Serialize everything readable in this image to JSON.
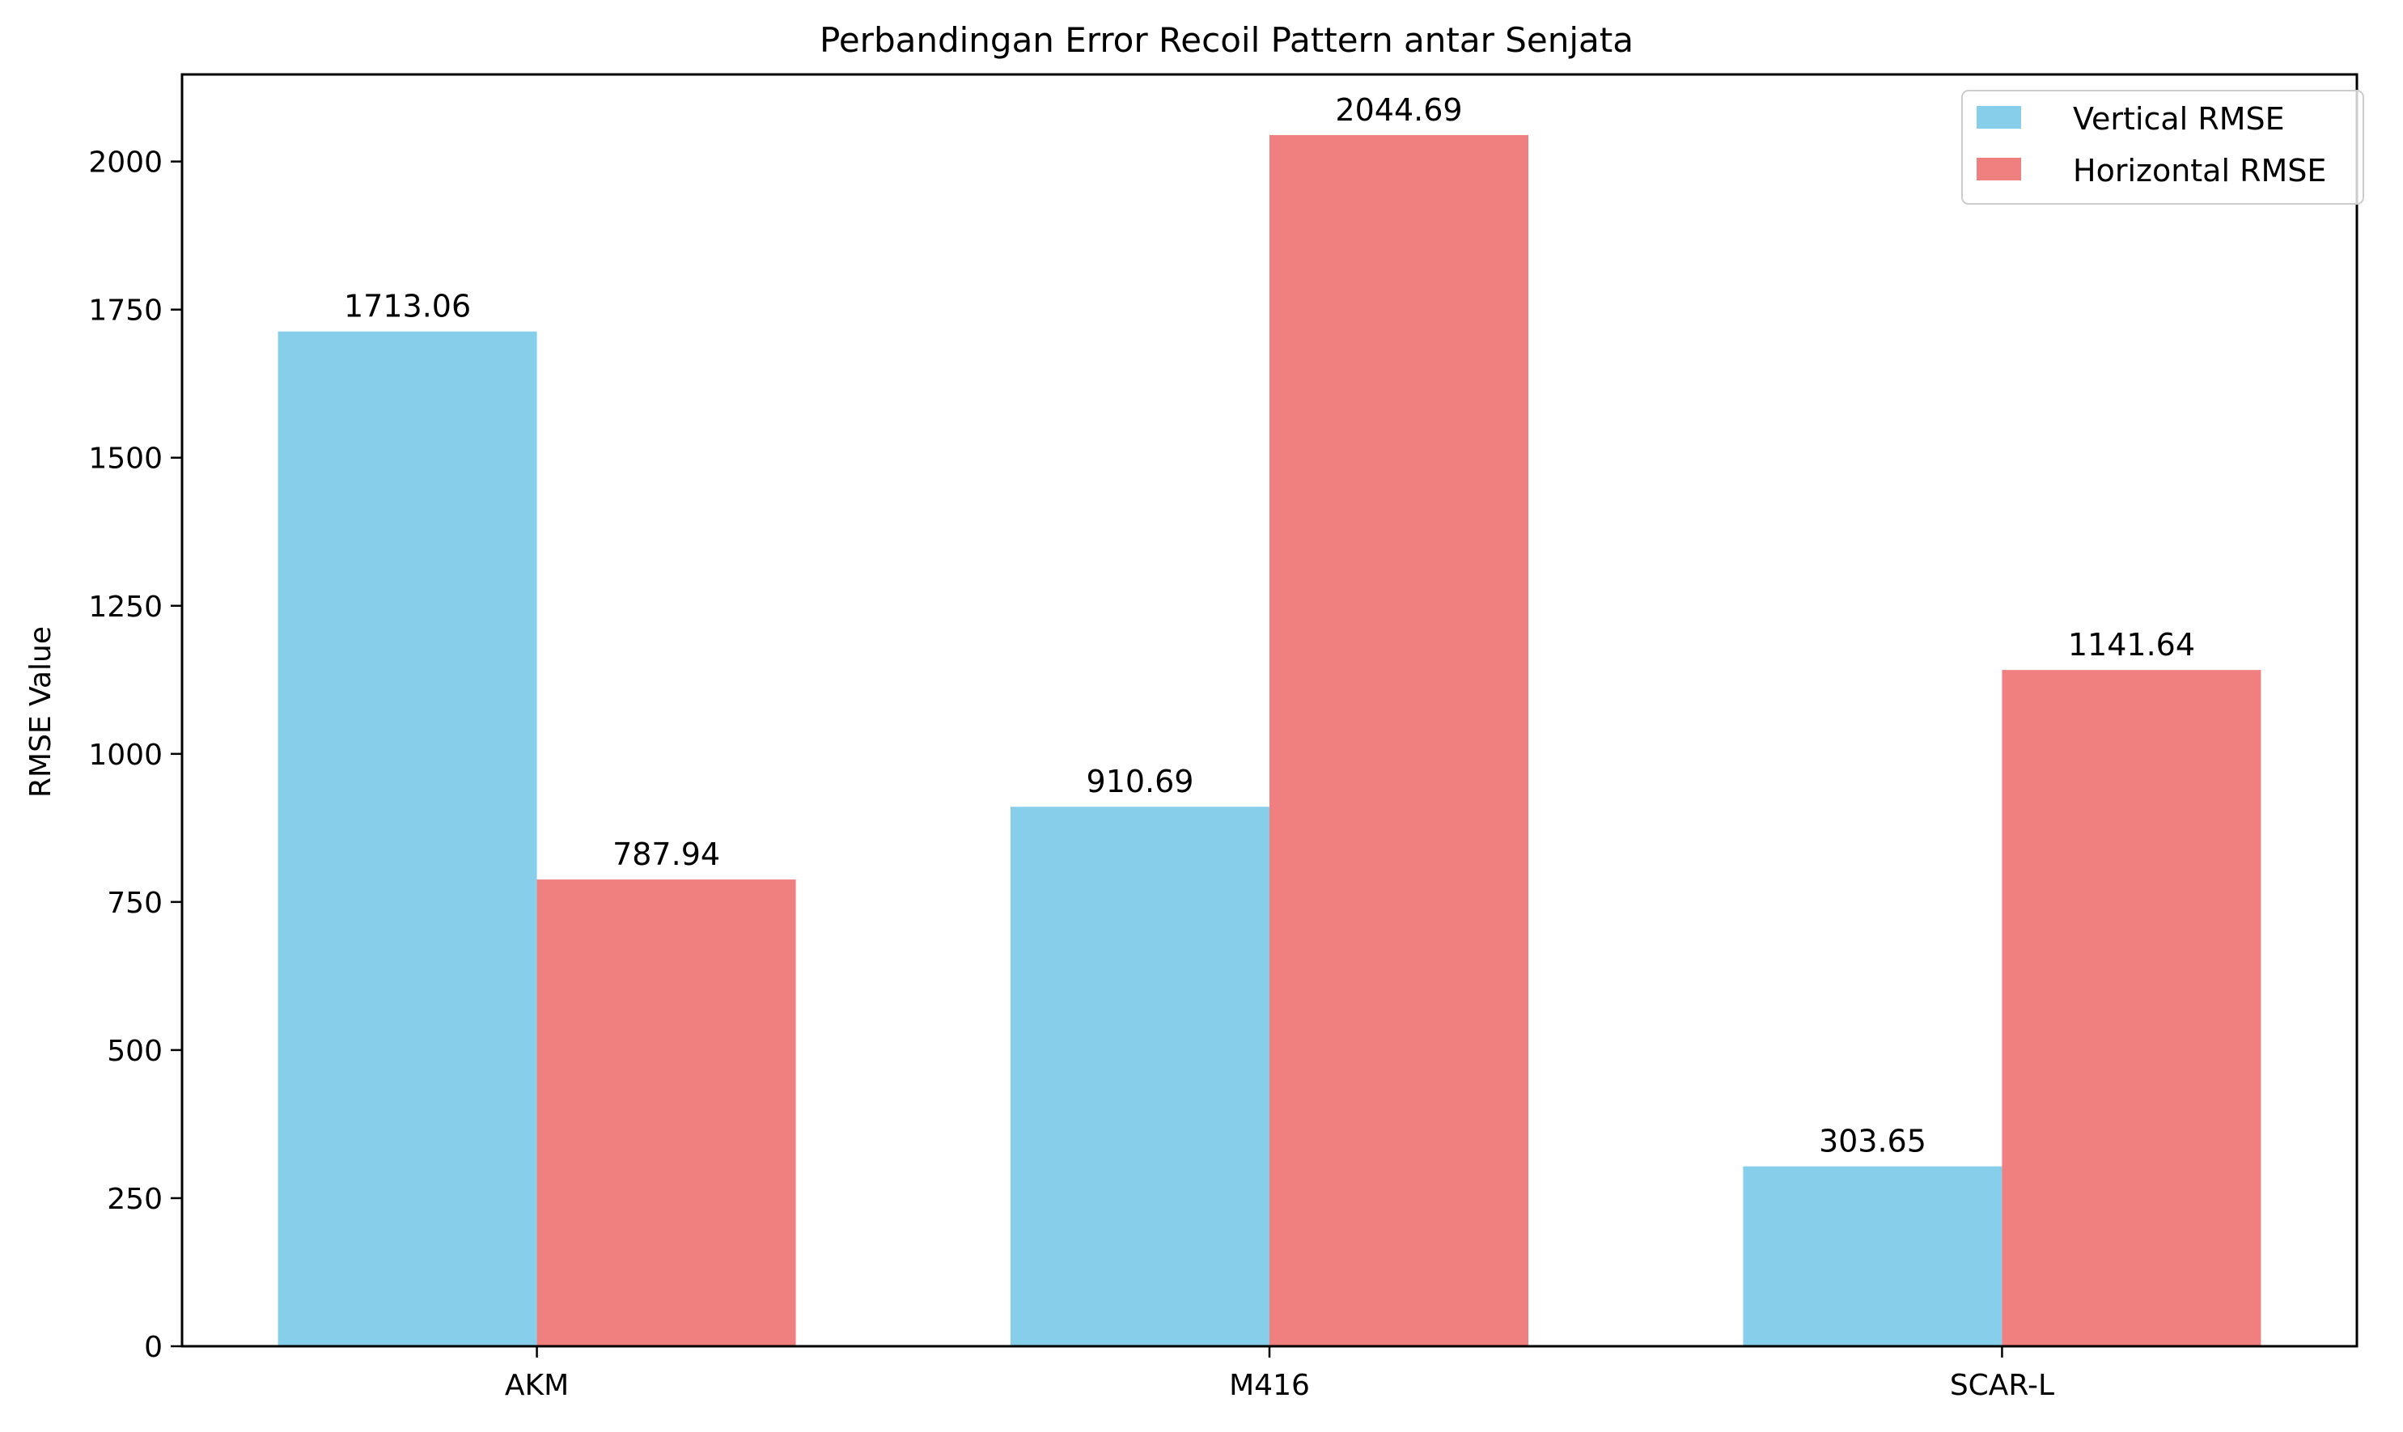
{
  "chart_data": {
    "type": "bar",
    "title": "Perbandingan Error Recoil Pattern antar Senjata",
    "xlabel": "",
    "ylabel": "RMSE Value",
    "categories": [
      "AKM",
      "M416",
      "SCAR-L"
    ],
    "series": [
      {
        "name": "Vertical RMSE",
        "color": "#87CEEB",
        "values": [
          1713.06,
          910.69,
          303.65
        ],
        "labels": [
          "1713.06",
          "910.69",
          "303.65"
        ]
      },
      {
        "name": "Horizontal RMSE",
        "color": "#F08080",
        "values": [
          787.94,
          2044.69,
          1141.64
        ],
        "labels": [
          "787.94",
          "2044.69",
          "1141.64"
        ]
      }
    ],
    "ylim": [
      0,
      2147
    ],
    "yticks": [
      0,
      250,
      500,
      750,
      1000,
      1250,
      1500,
      1750,
      2000
    ],
    "grid": false,
    "legend_position": "top-right"
  }
}
